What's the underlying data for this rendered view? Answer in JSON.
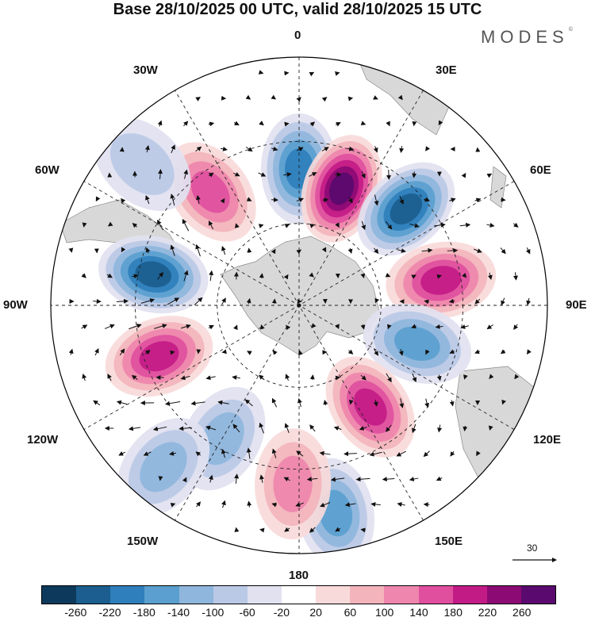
{
  "title": "Base 28/10/2025 00 UTC, valid 28/10/2025 15 UTC",
  "brand": "MODES",
  "brand_mark": "©",
  "longitude_labels": {
    "lon_0": "0",
    "lon_30e": "30E",
    "lon_60e": "60E",
    "lon_90e": "90E",
    "lon_120e": "120E",
    "lon_150e": "150E",
    "lon_180": "180",
    "lon_150w": "150W",
    "lon_120w": "120W",
    "lon_90w": "90W",
    "lon_60w": "60W",
    "lon_30w": "30W"
  },
  "reference_vector": {
    "label": "30"
  },
  "colors": {
    "land": "#d8d8d8",
    "graticule": "#222222",
    "positive_peak": "#5a0a6e",
    "negative_peak": "#0d3a5c"
  },
  "colorbar": {
    "colors": [
      "#0d3a5c",
      "#1b5e8f",
      "#2f7fbc",
      "#5a9fcf",
      "#8fb6dd",
      "#bac9e6",
      "#e1e1f0",
      "#ffffff",
      "#f9dada",
      "#f3b4bc",
      "#ee86ad",
      "#e04f9e",
      "#c31b86",
      "#8c0a74",
      "#5a0a6e"
    ],
    "ticks": [
      "-260",
      "-220",
      "-180",
      "-140",
      "-100",
      "-60",
      "-20",
      "20",
      "60",
      "100",
      "140",
      "180",
      "220",
      "260"
    ]
  },
  "map_features": {
    "anomalies": [
      {
        "name": "anomaly-neg-0",
        "lon": 0,
        "colat": 0.55,
        "value": -200
      },
      {
        "name": "anomaly-pos-20e",
        "lon": 20,
        "colat": 0.5,
        "value": 260
      },
      {
        "name": "anomaly-neg-48e",
        "lon": 48,
        "colat": 0.58,
        "value": -230
      },
      {
        "name": "anomaly-pos-80e",
        "lon": 80,
        "colat": 0.58,
        "value": 210
      },
      {
        "name": "anomaly-neg-108e",
        "lon": 108,
        "colat": 0.5,
        "value": -150
      },
      {
        "name": "anomaly-pos-145e",
        "lon": 145,
        "colat": 0.5,
        "value": 180
      },
      {
        "name": "anomaly-neg-170e",
        "lon": 170,
        "colat": 0.85,
        "value": -160
      },
      {
        "name": "anomaly-pos-178w",
        "lon": -178,
        "colat": 0.72,
        "value": 130
      },
      {
        "name": "anomaly-neg-150w",
        "lon": -150,
        "colat": 0.62,
        "value": -130
      },
      {
        "name": "anomaly-neg-140w",
        "lon": -140,
        "colat": 0.85,
        "value": -110
      },
      {
        "name": "anomaly-pos-110w",
        "lon": -110,
        "colat": 0.6,
        "value": 180
      },
      {
        "name": "anomaly-neg-78w",
        "lon": -78,
        "colat": 0.6,
        "value": -220
      },
      {
        "name": "anomaly-pos-38w",
        "lon": -38,
        "colat": 0.58,
        "value": 150
      },
      {
        "name": "anomaly-neg-48w",
        "lon": -48,
        "colat": 0.85,
        "value": -90
      }
    ]
  }
}
